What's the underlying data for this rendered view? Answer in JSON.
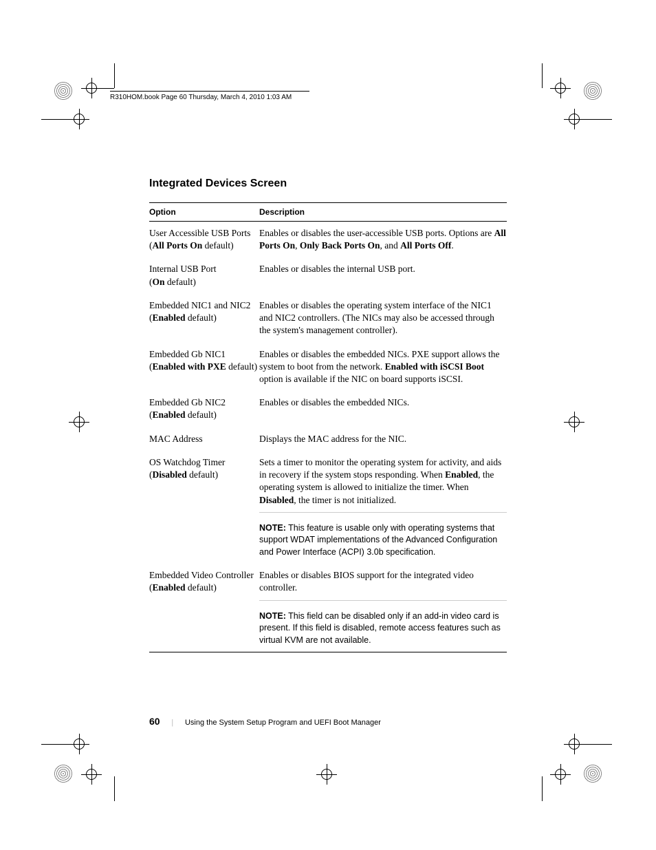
{
  "header_running": "R310HOM.book  Page 60  Thursday, March 4, 2010  1:03 AM",
  "section_title": "Integrated Devices Screen",
  "columns": {
    "option": "Option",
    "description": "Description"
  },
  "rows": [
    {
      "option_html": "User Accessible USB Ports<br>(<b>All Ports On</b> default)",
      "description_html": "Enables or disables the user-accessible USB ports. Options are <b>All Ports On</b>, <b>Only Back Ports On</b>, and <b>All Ports Off</b>."
    },
    {
      "option_html": "Internal USB Port<br>(<b>On</b> default)",
      "description_html": "Enables or disables the internal USB port."
    },
    {
      "option_html": "Embedded NIC1 and NIC2<br>(<b>Enabled</b> default)",
      "description_html": "Enables or disables the operating system interface of the NIC1 and NIC2 controllers. (The NICs may also be accessed through the system's management controller)."
    },
    {
      "option_html": "Embedded Gb NIC1<br>(<b>Enabled with PXE</b> default)",
      "description_html": "Enables or disables the embedded NICs. PXE support allows the system to boot from the network. <b>Enabled with iSCSI Boot</b> option is available if the NIC on board supports iSCSI."
    },
    {
      "option_html": "Embedded Gb NIC2<br>(<b>Enabled</b> default)",
      "description_html": "Enables or disables the embedded NICs."
    },
    {
      "option_html": "MAC Address",
      "description_html": "Displays the MAC address for the NIC."
    },
    {
      "option_html": "OS Watchdog Timer<br>(<b>Disabled</b> default)",
      "description_html": "Sets a timer to monitor the operating system for activity, and aids in recovery if the system stops responding. When <b>Enabled</b>, the operating system is allowed to initialize the timer. When <b>Disabled</b>, the timer is not initialized.",
      "note_html": "<b>NOTE:</b> This feature is usable only with operating systems that support WDAT implementations of the Advanced Configuration and Power Interface (ACPI) 3.0b specification."
    },
    {
      "option_html": "Embedded Video Controller<br>(<b>Enabled</b> default)",
      "description_html": "Enables or disables BIOS support for the integrated video controller.",
      "note_html": "<b>NOTE:</b> This field can be disabled only if an add-in video card is present. If this field is disabled, remote access features such as virtual KVM are not available."
    }
  ],
  "footer": {
    "page_number": "60",
    "chapter": "Using the System Setup Program and UEFI Boot Manager"
  },
  "colors": {
    "text": "#000000",
    "background": "#ffffff",
    "divider": "#cccccc"
  }
}
